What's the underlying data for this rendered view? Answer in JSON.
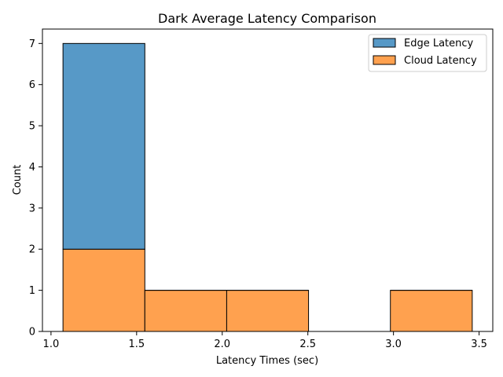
{
  "chart_data": {
    "type": "bar",
    "subtype": "stacked-histogram",
    "title": "Dark Average Latency Comparison",
    "xlabel": "Latency Times (sec)",
    "ylabel": "Count",
    "xlim": [
      0.95,
      3.58
    ],
    "ylim": [
      0,
      7.35
    ],
    "x_ticks": [
      1.0,
      1.5,
      2.0,
      2.5,
      3.0,
      3.5
    ],
    "x_tick_labels": [
      "1.0",
      "1.5",
      "2.0",
      "2.5",
      "3.0",
      "3.5"
    ],
    "y_ticks": [
      0,
      1,
      2,
      3,
      4,
      5,
      6,
      7
    ],
    "y_tick_labels": [
      "0",
      "1",
      "2",
      "3",
      "4",
      "5",
      "6",
      "7"
    ],
    "bin_edges": [
      1.07,
      1.548,
      2.026,
      2.504,
      2.982,
      3.46
    ],
    "series": [
      {
        "name": "Edge Latency",
        "color": "#5799c7",
        "values": [
          5,
          0,
          0,
          0,
          0
        ]
      },
      {
        "name": "Cloud Latency",
        "color": "#ffa14f",
        "values": [
          2,
          1,
          1,
          0,
          1
        ]
      }
    ],
    "stacked": true,
    "legend_position": "top-right",
    "grid": false
  }
}
